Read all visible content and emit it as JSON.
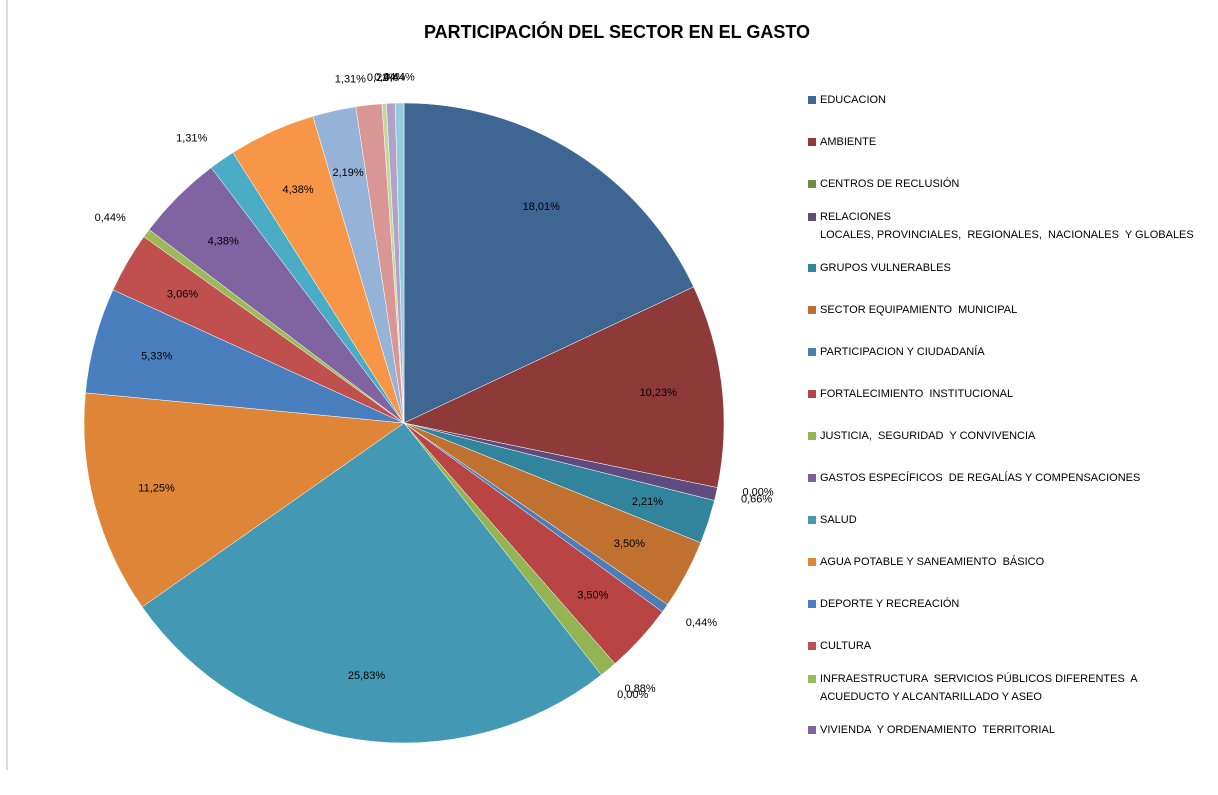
{
  "chart_data": {
    "type": "pie",
    "title": "PARTICIPACIÓN DEL SECTOR EN EL GASTO",
    "categories": [
      "EDUCACION",
      "AMBIENTE",
      "CENTROS DE RECLUSIÓN",
      "RELACIONES\nLOCALES, PROVINCIALES,  REGIONALES,  NACIONALES  Y GLOBALES",
      "GRUPOS VULNERABLES",
      "SECTOR EQUIPAMIENTO  MUNICIPAL",
      "PARTICIPACION Y CIUDADANÍA",
      "FORTALECIMIENTO  INSTITUCIONAL",
      "JUSTICIA,  SEGURIDAD  Y CONVIVENCIA",
      "GASTOS ESPECÍFICOS  DE REGALÍAS Y COMPENSACIONES",
      "SALUD",
      "AGUA POTABLE Y SANEAMIENTO  BÁSICO",
      "DEPORTE Y RECREACIÓN",
      "CULTURA",
      "INFRAESTRUCTURA  SERVICIOS PÚBLICOS DIFERENTES  A\nACUEDUCTO Y ALCANTARILLADO Y ASEO",
      "VIVIENDA  Y ORDENAMIENTO  TERRITORIAL",
      null,
      null,
      null,
      null,
      null,
      null,
      null
    ],
    "values": [
      18.01,
      10.23,
      0,
      0.66,
      2.21,
      3.5,
      0.44,
      3.5,
      0.88,
      0,
      25.83,
      11.25,
      5.33,
      3.06,
      0.44,
      4.38,
      1.31,
      4.38,
      2.19,
      1.31,
      0.22,
      0.44,
      0.44
    ],
    "value_labels": [
      "18,01%",
      "10,23%",
      "0,00%",
      "0,66%",
      "2,21%",
      "3,50%",
      "0,44%",
      "3,50%",
      "0,88%",
      "0,00%",
      "25,83%",
      "11,25%",
      "5,33%",
      "3,06%",
      "0,44%",
      "4,38%",
      "1,31%",
      "4,38%",
      "2,19%",
      "1,31%",
      "0,22%",
      "0,44%",
      "0,44%"
    ],
    "colors": [
      "#3f6592",
      "#8e3a38",
      "#71893f",
      "#5f4b80",
      "#31849b",
      "#c0702f",
      "#4a7ebb",
      "#b84543",
      "#93b452",
      "#7a5f9c",
      "#4399b4",
      "#de8537",
      "#4a7fbf",
      "#c0504d",
      "#9bbb59",
      "#8064a2",
      "#4bacc6",
      "#f79646",
      "#95b3d7",
      "#d99694",
      "#c3d69b",
      "#b3a2c7",
      "#93cddd"
    ],
    "legend": "right"
  }
}
